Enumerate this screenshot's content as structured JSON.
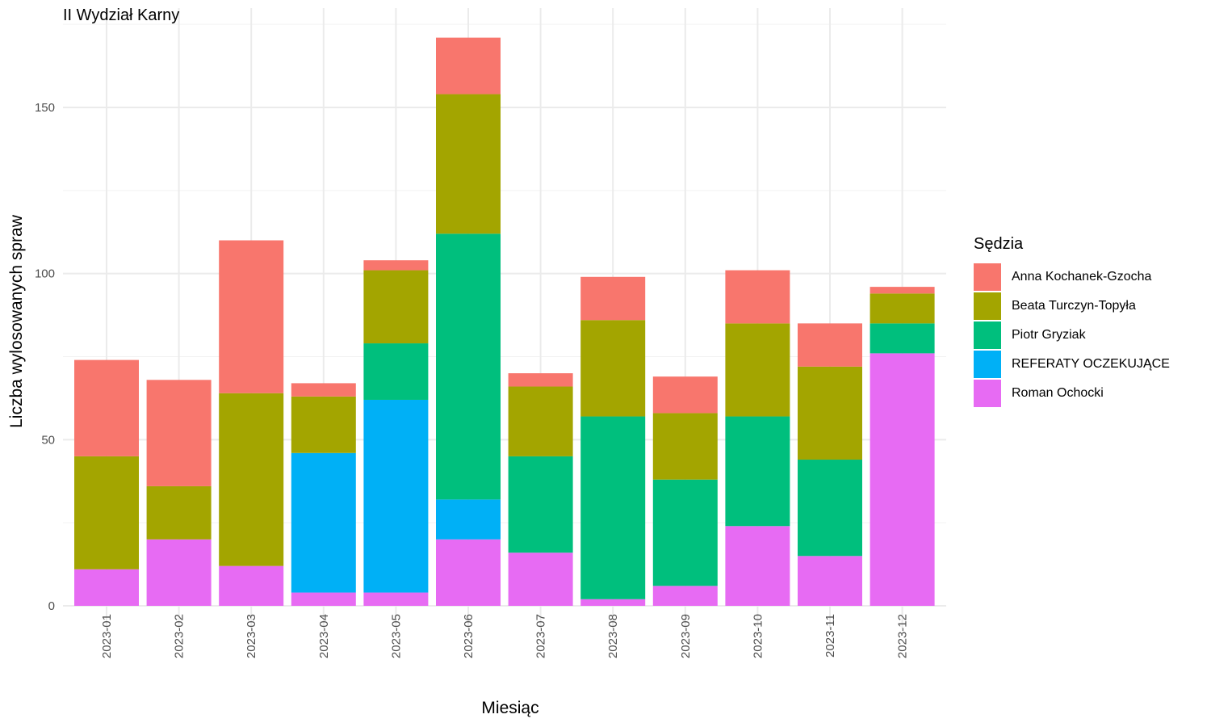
{
  "chart_data": {
    "type": "bar",
    "stacked": true,
    "title": "II Wydział Karny",
    "xlabel": "Miesiąc",
    "ylabel": "Liczba wylosowanych spraw",
    "legend_title": "Sędzia",
    "legend_position": "right",
    "grid": true,
    "ylim": [
      0,
      175
    ],
    "yticks": [
      0,
      50,
      100,
      150
    ],
    "categories": [
      "2023-01",
      "2023-02",
      "2023-03",
      "2023-04",
      "2023-05",
      "2023-06",
      "2023-07",
      "2023-08",
      "2023-09",
      "2023-10",
      "2023-11",
      "2023-12"
    ],
    "series": [
      {
        "name": "Roman Ochocki",
        "color": "#E76BF3",
        "values": [
          11,
          20,
          12,
          4,
          4,
          20,
          16,
          2,
          6,
          24,
          15,
          76
        ]
      },
      {
        "name": "REFERATY OCZEKUJĄCE",
        "color": "#00B0F6",
        "values": [
          0,
          0,
          0,
          42,
          58,
          12,
          0,
          0,
          0,
          0,
          0,
          0
        ]
      },
      {
        "name": "Piotr Gryziak",
        "color": "#00BF7D",
        "values": [
          0,
          0,
          0,
          0,
          17,
          80,
          29,
          55,
          32,
          33,
          29,
          9
        ]
      },
      {
        "name": "Beata Turczyn-Topyła",
        "color": "#A3A500",
        "values": [
          34,
          16,
          52,
          17,
          22,
          42,
          21,
          29,
          20,
          28,
          28,
          9
        ]
      },
      {
        "name": "Anna Kochanek-Gzocha",
        "color": "#F8766D",
        "values": [
          29,
          32,
          46,
          4,
          3,
          17,
          4,
          13,
          11,
          16,
          13,
          2
        ]
      }
    ],
    "legend_order": [
      "Anna Kochanek-Gzocha",
      "Beata Turczyn-Topyła",
      "Piotr Gryziak",
      "REFERATY OCZEKUJĄCE",
      "Roman Ochocki"
    ]
  }
}
